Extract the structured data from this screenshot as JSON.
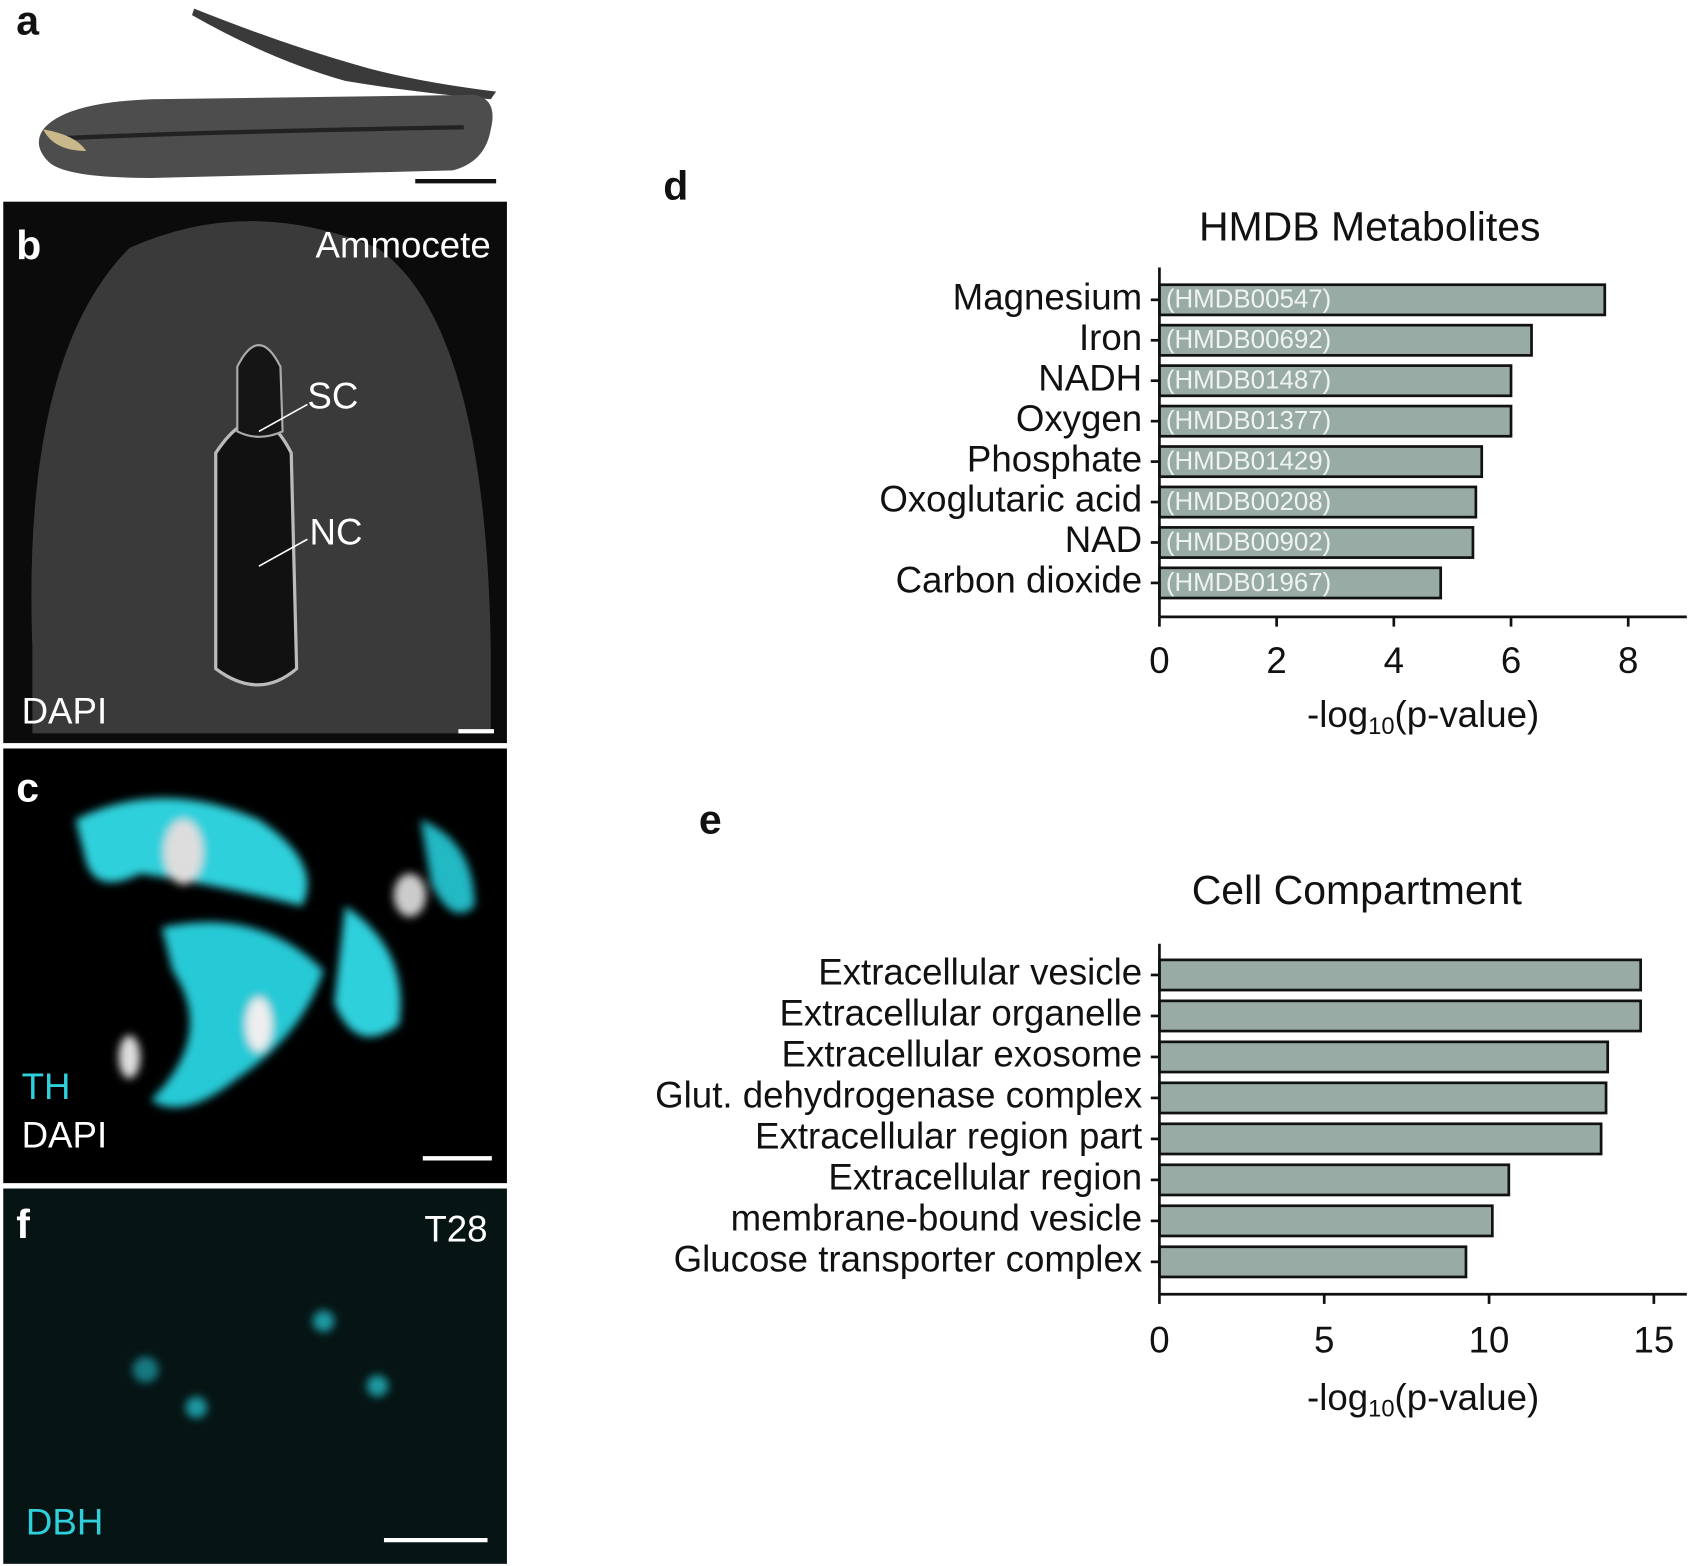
{
  "panels": {
    "a": {
      "label": "a"
    },
    "b": {
      "label": "b",
      "title": "Ammocete",
      "sc": "SC",
      "nc": "NC",
      "stain": "DAPI"
    },
    "c": {
      "label": "c",
      "stain1": "TH",
      "stain2": "DAPI"
    },
    "f": {
      "label": "f",
      "title": "T28",
      "stain": "DBH"
    }
  },
  "chart_data": [
    {
      "type": "hbar",
      "panel_label": "d",
      "title": "HMDB Metabolites",
      "categories": [
        "Magnesium",
        "Iron",
        "NADH",
        "Oxygen",
        "Phosphate",
        "Oxoglutaric acid",
        "NAD",
        "Carbon dioxide"
      ],
      "values": [
        7.6,
        6.35,
        6.0,
        6.0,
        5.5,
        5.4,
        5.35,
        4.8
      ],
      "bar_labels": [
        "(HMDB00547)",
        "(HMDB00692)",
        "(HMDB01487)",
        "(HMDB01377)",
        "(HMDB01429)",
        "(HMDB00208)",
        "(HMDB00902)",
        "(HMDB01967)"
      ],
      "color": "#98aba4",
      "xlim": [
        0,
        9
      ],
      "xticks": [
        0,
        2,
        4,
        6,
        8
      ],
      "xlabel": [
        "-log",
        "10",
        "(p-value)"
      ]
    },
    {
      "type": "hbar",
      "panel_label": "e",
      "title": "Cell Compartment",
      "categories": [
        "Extracellular vesicle",
        "Extracellular organelle",
        "Extracellular exosome",
        "Glut. dehydrogenase complex",
        "Extracellular region part",
        "Extracellular region",
        "membrane-bound vesicle",
        "Glucose transporter complex"
      ],
      "values": [
        14.6,
        14.6,
        13.6,
        13.55,
        13.4,
        10.6,
        10.1,
        9.3
      ],
      "color": "#98aba4",
      "xlim": [
        0,
        16
      ],
      "xticks": [
        0,
        5,
        10,
        15
      ],
      "xlabel": [
        "-log",
        "10",
        "(p-value)"
      ]
    }
  ]
}
